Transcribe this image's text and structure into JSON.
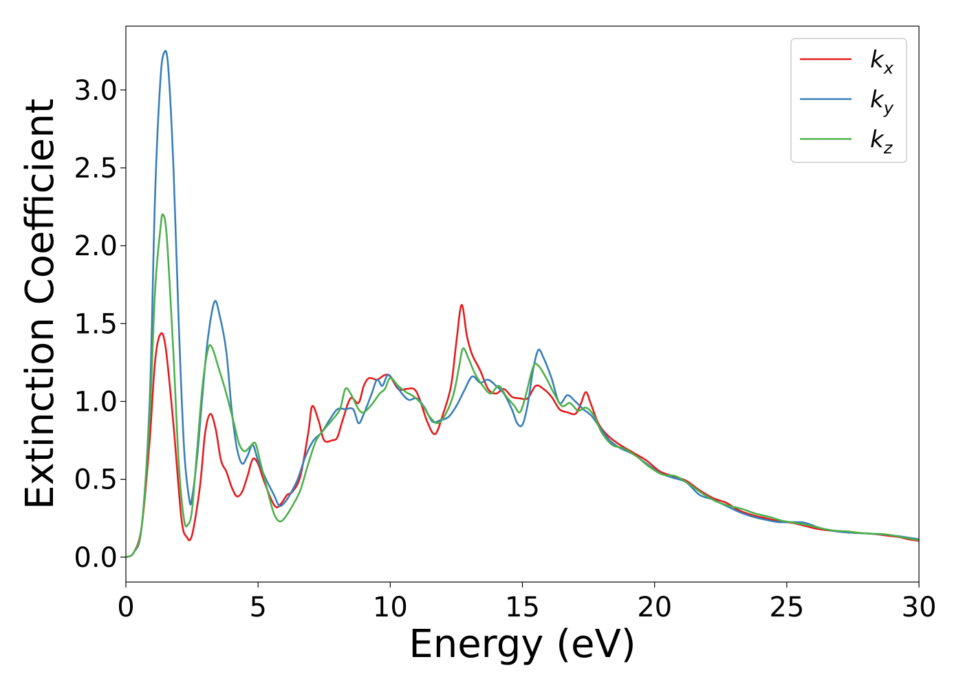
{
  "chart_data": {
    "type": "line",
    "title": "",
    "xlabel": "Energy (eV)",
    "ylabel": "Extinction Coefficient",
    "xlim": [
      0,
      30
    ],
    "ylim": [
      -0.16,
      3.41
    ],
    "xticks": [
      "0",
      "5",
      "10",
      "15",
      "20",
      "25",
      "30"
    ],
    "yticks": [
      "0.0",
      "0.5",
      "1.0",
      "1.5",
      "2.0",
      "2.5",
      "3.0"
    ],
    "grid": false,
    "legend_position": "top-right",
    "series": [
      {
        "name": "k",
        "subscript": "x",
        "color": "#e41a1c",
        "points": [
          [
            0,
            0
          ],
          [
            0.3,
            0.03
          ],
          [
            0.6,
            0.2
          ],
          [
            0.9,
            0.75
          ],
          [
            1.1,
            1.25
          ],
          [
            1.3,
            1.43
          ],
          [
            1.5,
            1.35
          ],
          [
            1.8,
            0.85
          ],
          [
            2.1,
            0.25
          ],
          [
            2.3,
            0.13
          ],
          [
            2.5,
            0.14
          ],
          [
            2.8,
            0.45
          ],
          [
            3.0,
            0.8
          ],
          [
            3.2,
            0.92
          ],
          [
            3.4,
            0.82
          ],
          [
            3.6,
            0.62
          ],
          [
            3.8,
            0.55
          ],
          [
            4.0,
            0.45
          ],
          [
            4.2,
            0.39
          ],
          [
            4.4,
            0.42
          ],
          [
            4.6,
            0.52
          ],
          [
            4.8,
            0.63
          ],
          [
            5.0,
            0.6
          ],
          [
            5.2,
            0.5
          ],
          [
            5.5,
            0.37
          ],
          [
            5.7,
            0.32
          ],
          [
            5.9,
            0.35
          ],
          [
            6.1,
            0.4
          ],
          [
            6.3,
            0.42
          ],
          [
            6.6,
            0.52
          ],
          [
            6.9,
            0.8
          ],
          [
            7.05,
            0.97
          ],
          [
            7.3,
            0.87
          ],
          [
            7.5,
            0.75
          ],
          [
            7.8,
            0.75
          ],
          [
            8.0,
            0.77
          ],
          [
            8.2,
            0.88
          ],
          [
            8.5,
            1.02
          ],
          [
            8.8,
            0.99
          ],
          [
            9.0,
            1.1
          ],
          [
            9.2,
            1.15
          ],
          [
            9.5,
            1.14
          ],
          [
            9.8,
            1.17
          ],
          [
            10.0,
            1.16
          ],
          [
            10.3,
            1.08
          ],
          [
            10.6,
            1.08
          ],
          [
            10.9,
            1.08
          ],
          [
            11.1,
            1.02
          ],
          [
            11.4,
            0.87
          ],
          [
            11.7,
            0.79
          ],
          [
            12.0,
            0.92
          ],
          [
            12.3,
            1.1
          ],
          [
            12.5,
            1.38
          ],
          [
            12.7,
            1.62
          ],
          [
            12.9,
            1.42
          ],
          [
            13.1,
            1.3
          ],
          [
            13.4,
            1.2
          ],
          [
            13.7,
            1.08
          ],
          [
            14.0,
            1.05
          ],
          [
            14.3,
            1.08
          ],
          [
            14.6,
            1.03
          ],
          [
            14.9,
            1.02
          ],
          [
            15.2,
            1.02
          ],
          [
            15.5,
            1.1
          ],
          [
            15.8,
            1.08
          ],
          [
            16.1,
            1.03
          ],
          [
            16.4,
            0.95
          ],
          [
            16.7,
            0.93
          ],
          [
            17.0,
            0.92
          ],
          [
            17.2,
            0.98
          ],
          [
            17.4,
            1.06
          ],
          [
            17.6,
            0.98
          ],
          [
            17.9,
            0.85
          ],
          [
            18.3,
            0.77
          ],
          [
            18.7,
            0.72
          ],
          [
            19.2,
            0.67
          ],
          [
            19.7,
            0.62
          ],
          [
            20.2,
            0.55
          ],
          [
            20.7,
            0.52
          ],
          [
            21.2,
            0.49
          ],
          [
            21.7,
            0.43
          ],
          [
            22.2,
            0.38
          ],
          [
            22.7,
            0.35
          ],
          [
            23.2,
            0.3
          ],
          [
            23.7,
            0.27
          ],
          [
            24.2,
            0.25
          ],
          [
            24.7,
            0.23
          ],
          [
            25.2,
            0.22
          ],
          [
            25.7,
            0.2
          ],
          [
            26.2,
            0.18
          ],
          [
            26.7,
            0.17
          ],
          [
            27.2,
            0.16
          ],
          [
            27.7,
            0.155
          ],
          [
            28.2,
            0.15
          ],
          [
            28.7,
            0.14
          ],
          [
            29.2,
            0.13
          ],
          [
            29.6,
            0.115
          ],
          [
            30,
            0.105
          ]
        ]
      },
      {
        "name": "k",
        "subscript": "y",
        "color": "#377eb8",
        "points": [
          [
            0,
            0
          ],
          [
            0.3,
            0.03
          ],
          [
            0.6,
            0.2
          ],
          [
            0.9,
            1.0
          ],
          [
            1.1,
            2.3
          ],
          [
            1.3,
            3.05
          ],
          [
            1.45,
            3.24
          ],
          [
            1.6,
            3.15
          ],
          [
            1.8,
            2.5
          ],
          [
            2.0,
            1.5
          ],
          [
            2.2,
            0.7
          ],
          [
            2.4,
            0.37
          ],
          [
            2.5,
            0.38
          ],
          [
            2.7,
            0.65
          ],
          [
            2.9,
            1.05
          ],
          [
            3.1,
            1.4
          ],
          [
            3.35,
            1.64
          ],
          [
            3.55,
            1.55
          ],
          [
            3.8,
            1.32
          ],
          [
            4.0,
            0.95
          ],
          [
            4.2,
            0.7
          ],
          [
            4.4,
            0.6
          ],
          [
            4.6,
            0.65
          ],
          [
            4.8,
            0.72
          ],
          [
            5.0,
            0.62
          ],
          [
            5.3,
            0.5
          ],
          [
            5.6,
            0.4
          ],
          [
            5.8,
            0.33
          ],
          [
            6.0,
            0.35
          ],
          [
            6.2,
            0.4
          ],
          [
            6.5,
            0.5
          ],
          [
            6.8,
            0.65
          ],
          [
            7.1,
            0.75
          ],
          [
            7.4,
            0.8
          ],
          [
            7.7,
            0.88
          ],
          [
            8.0,
            0.95
          ],
          [
            8.3,
            0.95
          ],
          [
            8.6,
            0.95
          ],
          [
            8.8,
            0.86
          ],
          [
            9.0,
            0.92
          ],
          [
            9.3,
            1.05
          ],
          [
            9.5,
            1.14
          ],
          [
            9.7,
            1.1
          ],
          [
            9.9,
            1.17
          ],
          [
            10.1,
            1.14
          ],
          [
            10.4,
            1.06
          ],
          [
            10.7,
            1.01
          ],
          [
            11.0,
            1.02
          ],
          [
            11.3,
            0.96
          ],
          [
            11.6,
            0.87
          ],
          [
            11.9,
            0.88
          ],
          [
            12.2,
            0.9
          ],
          [
            12.5,
            0.97
          ],
          [
            12.8,
            1.07
          ],
          [
            13.1,
            1.16
          ],
          [
            13.4,
            1.12
          ],
          [
            13.7,
            1.14
          ],
          [
            14.0,
            1.1
          ],
          [
            14.3,
            1.05
          ],
          [
            14.6,
            0.95
          ],
          [
            14.8,
            0.86
          ],
          [
            15.0,
            0.85
          ],
          [
            15.2,
            0.98
          ],
          [
            15.4,
            1.2
          ],
          [
            15.6,
            1.33
          ],
          [
            15.8,
            1.28
          ],
          [
            16.1,
            1.15
          ],
          [
            16.4,
            0.99
          ],
          [
            16.7,
            1.04
          ],
          [
            17.0,
            1.0
          ],
          [
            17.3,
            0.95
          ],
          [
            17.6,
            0.91
          ],
          [
            17.9,
            0.84
          ],
          [
            18.3,
            0.75
          ],
          [
            18.7,
            0.7
          ],
          [
            19.2,
            0.66
          ],
          [
            19.7,
            0.6
          ],
          [
            20.2,
            0.54
          ],
          [
            20.7,
            0.51
          ],
          [
            21.2,
            0.48
          ],
          [
            21.7,
            0.4
          ],
          [
            22.2,
            0.37
          ],
          [
            22.7,
            0.33
          ],
          [
            23.2,
            0.29
          ],
          [
            23.7,
            0.26
          ],
          [
            24.2,
            0.24
          ],
          [
            24.7,
            0.225
          ],
          [
            25.2,
            0.225
          ],
          [
            25.7,
            0.22
          ],
          [
            26.2,
            0.19
          ],
          [
            26.7,
            0.17
          ],
          [
            27.2,
            0.16
          ],
          [
            27.7,
            0.155
          ],
          [
            28.2,
            0.15
          ],
          [
            28.7,
            0.145
          ],
          [
            29.2,
            0.135
          ],
          [
            29.6,
            0.125
          ],
          [
            30,
            0.115
          ]
        ]
      },
      {
        "name": "k",
        "subscript": "z",
        "color": "#4daf4a",
        "points": [
          [
            0,
            0
          ],
          [
            0.3,
            0.03
          ],
          [
            0.6,
            0.2
          ],
          [
            0.9,
            0.9
          ],
          [
            1.1,
            1.7
          ],
          [
            1.3,
            2.1
          ],
          [
            1.4,
            2.2
          ],
          [
            1.55,
            2.05
          ],
          [
            1.8,
            1.3
          ],
          [
            2.0,
            0.6
          ],
          [
            2.2,
            0.24
          ],
          [
            2.35,
            0.21
          ],
          [
            2.5,
            0.3
          ],
          [
            2.7,
            0.7
          ],
          [
            2.9,
            1.1
          ],
          [
            3.1,
            1.33
          ],
          [
            3.25,
            1.35
          ],
          [
            3.5,
            1.22
          ],
          [
            3.8,
            1.05
          ],
          [
            4.1,
            0.85
          ],
          [
            4.3,
            0.72
          ],
          [
            4.5,
            0.68
          ],
          [
            4.7,
            0.71
          ],
          [
            4.9,
            0.73
          ],
          [
            5.1,
            0.6
          ],
          [
            5.4,
            0.4
          ],
          [
            5.6,
            0.28
          ],
          [
            5.8,
            0.23
          ],
          [
            6.0,
            0.25
          ],
          [
            6.3,
            0.33
          ],
          [
            6.6,
            0.43
          ],
          [
            6.9,
            0.6
          ],
          [
            7.2,
            0.75
          ],
          [
            7.5,
            0.82
          ],
          [
            7.8,
            0.88
          ],
          [
            8.1,
            0.95
          ],
          [
            8.3,
            1.08
          ],
          [
            8.5,
            1.05
          ],
          [
            8.8,
            0.95
          ],
          [
            9.0,
            0.93
          ],
          [
            9.3,
            0.98
          ],
          [
            9.6,
            1.05
          ],
          [
            9.8,
            1.08
          ],
          [
            10.0,
            1.15
          ],
          [
            10.3,
            1.1
          ],
          [
            10.6,
            1.06
          ],
          [
            10.9,
            1.03
          ],
          [
            11.2,
            0.98
          ],
          [
            11.5,
            0.9
          ],
          [
            11.8,
            0.86
          ],
          [
            12.1,
            0.92
          ],
          [
            12.4,
            1.05
          ],
          [
            12.6,
            1.22
          ],
          [
            12.75,
            1.34
          ],
          [
            12.95,
            1.28
          ],
          [
            13.2,
            1.18
          ],
          [
            13.5,
            1.1
          ],
          [
            13.8,
            1.05
          ],
          [
            14.1,
            1.1
          ],
          [
            14.4,
            1.03
          ],
          [
            14.7,
            0.97
          ],
          [
            14.9,
            0.93
          ],
          [
            15.1,
            1.02
          ],
          [
            15.4,
            1.22
          ],
          [
            15.6,
            1.23
          ],
          [
            15.9,
            1.15
          ],
          [
            16.2,
            1.05
          ],
          [
            16.5,
            0.97
          ],
          [
            16.8,
            0.99
          ],
          [
            17.1,
            0.94
          ],
          [
            17.4,
            0.96
          ],
          [
            17.7,
            0.91
          ],
          [
            18.0,
            0.8
          ],
          [
            18.4,
            0.72
          ],
          [
            18.8,
            0.7
          ],
          [
            19.3,
            0.65
          ],
          [
            19.8,
            0.58
          ],
          [
            20.3,
            0.53
          ],
          [
            20.8,
            0.52
          ],
          [
            21.3,
            0.47
          ],
          [
            21.8,
            0.41
          ],
          [
            22.3,
            0.36
          ],
          [
            22.8,
            0.33
          ],
          [
            23.3,
            0.31
          ],
          [
            23.8,
            0.28
          ],
          [
            24.3,
            0.26
          ],
          [
            24.8,
            0.235
          ],
          [
            25.3,
            0.22
          ],
          [
            25.8,
            0.205
          ],
          [
            26.3,
            0.185
          ],
          [
            26.8,
            0.17
          ],
          [
            27.3,
            0.165
          ],
          [
            27.8,
            0.155
          ],
          [
            28.3,
            0.15
          ],
          [
            28.8,
            0.145
          ],
          [
            29.3,
            0.13
          ],
          [
            29.6,
            0.12
          ],
          [
            30,
            0.11
          ]
        ]
      }
    ]
  }
}
